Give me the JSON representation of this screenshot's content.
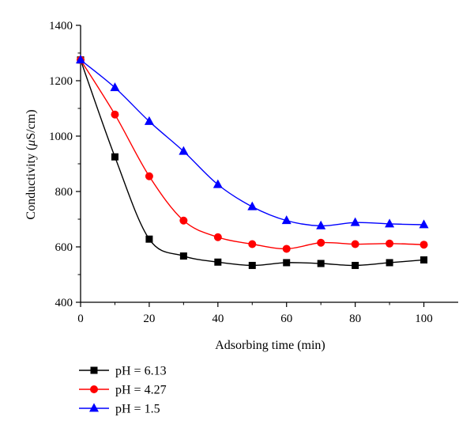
{
  "chart_data": {
    "type": "line",
    "title": "",
    "xlabel": "Adsorbing time (min)",
    "ylabel_parts": [
      "Conductivity (",
      "μ",
      "S/cm)"
    ],
    "xlim": [
      0,
      110
    ],
    "ylim": [
      400,
      1400
    ],
    "xticks": [
      0,
      20,
      40,
      60,
      80,
      100
    ],
    "yticks": [
      400,
      600,
      800,
      1000,
      1200,
      1400
    ],
    "x": [
      0,
      10,
      20,
      30,
      40,
      50,
      60,
      70,
      80,
      90,
      100
    ],
    "series": [
      {
        "name": "pH = 6.13",
        "color": "#000000",
        "marker": "square",
        "values": [
          1275,
          925,
          628,
          567,
          545,
          533,
          543,
          540,
          533,
          543,
          553
        ]
      },
      {
        "name": "pH = 4.27",
        "color": "#ff0000",
        "marker": "circle",
        "values": [
          1275,
          1078,
          855,
          695,
          635,
          610,
          593,
          615,
          610,
          612,
          608
        ]
      },
      {
        "name": "pH = 1.5",
        "color": "#0000ff",
        "marker": "triangle",
        "values": [
          1275,
          1175,
          1053,
          945,
          825,
          745,
          695,
          676,
          688,
          683,
          680
        ]
      }
    ],
    "grid": false,
    "legend_position": "bottom-left"
  }
}
